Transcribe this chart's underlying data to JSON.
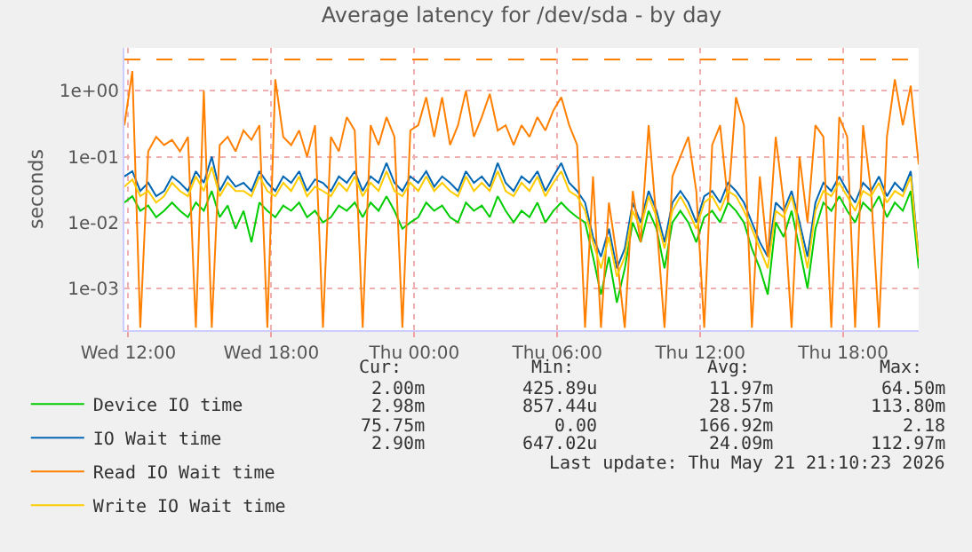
{
  "chart_data": {
    "type": "line",
    "title": "Average latency for /dev/sda - by day",
    "ylabel": "seconds",
    "x": [
      "2026-05-20T11:50",
      "2026-05-20T12:10",
      "2026-05-20T12:30",
      "2026-05-20T12:50",
      "2026-05-20T13:10",
      "2026-05-20T13:30",
      "2026-05-20T13:50",
      "2026-05-20T14:10",
      "2026-05-20T14:30",
      "2026-05-20T14:50",
      "2026-05-20T15:10",
      "2026-05-20T15:30",
      "2026-05-20T15:50",
      "2026-05-20T16:10",
      "2026-05-20T16:30",
      "2026-05-20T16:50",
      "2026-05-20T17:10",
      "2026-05-20T17:30",
      "2026-05-20T17:50",
      "2026-05-20T18:10",
      "2026-05-20T18:30",
      "2026-05-20T18:50",
      "2026-05-20T19:10",
      "2026-05-20T19:30",
      "2026-05-20T19:50",
      "2026-05-20T20:10",
      "2026-05-20T20:30",
      "2026-05-20T20:50",
      "2026-05-20T21:10",
      "2026-05-20T21:30",
      "2026-05-20T21:50",
      "2026-05-20T22:10",
      "2026-05-20T22:30",
      "2026-05-20T22:50",
      "2026-05-20T23:10",
      "2026-05-20T23:30",
      "2026-05-20T23:50",
      "2026-05-21T00:10",
      "2026-05-21T00:30",
      "2026-05-21T00:50",
      "2026-05-21T01:10",
      "2026-05-21T01:30",
      "2026-05-21T01:50",
      "2026-05-21T02:10",
      "2026-05-21T02:30",
      "2026-05-21T02:50",
      "2026-05-21T03:10",
      "2026-05-21T03:30",
      "2026-05-21T03:50",
      "2026-05-21T04:10",
      "2026-05-21T04:30",
      "2026-05-21T04:50",
      "2026-05-21T05:10",
      "2026-05-21T05:30",
      "2026-05-21T05:50",
      "2026-05-21T06:10",
      "2026-05-21T06:30",
      "2026-05-21T06:50",
      "2026-05-21T07:10",
      "2026-05-21T07:30",
      "2026-05-21T07:50",
      "2026-05-21T08:10",
      "2026-05-21T08:30",
      "2026-05-21T08:50",
      "2026-05-21T09:10",
      "2026-05-21T09:30",
      "2026-05-21T09:50",
      "2026-05-21T10:10",
      "2026-05-21T10:30",
      "2026-05-21T10:50",
      "2026-05-21T11:10",
      "2026-05-21T11:30",
      "2026-05-21T11:50",
      "2026-05-21T12:10",
      "2026-05-21T12:30",
      "2026-05-21T12:50",
      "2026-05-21T13:10",
      "2026-05-21T13:30",
      "2026-05-21T13:50",
      "2026-05-21T14:10",
      "2026-05-21T14:30",
      "2026-05-21T14:50",
      "2026-05-21T15:10",
      "2026-05-21T15:30",
      "2026-05-21T15:50",
      "2026-05-21T16:10",
      "2026-05-21T16:30",
      "2026-05-21T16:50",
      "2026-05-21T17:10",
      "2026-05-21T17:30",
      "2026-05-21T17:50",
      "2026-05-21T18:10",
      "2026-05-21T18:30",
      "2026-05-21T18:50",
      "2026-05-21T19:10",
      "2026-05-21T19:30",
      "2026-05-21T19:50",
      "2026-05-21T20:10",
      "2026-05-21T20:30",
      "2026-05-21T20:50",
      "2026-05-21T21:10"
    ],
    "series": [
      {
        "name": "Device IO time",
        "color": "#00cc00",
        "values": [
          0.02,
          0.025,
          0.015,
          0.018,
          0.012,
          0.015,
          0.02,
          0.015,
          0.012,
          0.02,
          0.015,
          0.03,
          0.012,
          0.018,
          0.008,
          0.015,
          0.005,
          0.02,
          0.015,
          0.012,
          0.018,
          0.015,
          0.02,
          0.012,
          0.015,
          0.01,
          0.012,
          0.018,
          0.015,
          0.02,
          0.012,
          0.02,
          0.015,
          0.025,
          0.015,
          0.008,
          0.01,
          0.012,
          0.02,
          0.015,
          0.018,
          0.012,
          0.01,
          0.02,
          0.015,
          0.018,
          0.012,
          0.025,
          0.015,
          0.01,
          0.015,
          0.012,
          0.02,
          0.01,
          0.015,
          0.02,
          0.015,
          0.012,
          0.01,
          0.003,
          0.0008,
          0.003,
          0.0006,
          0.002,
          0.01,
          0.005,
          0.015,
          0.008,
          0.002,
          0.01,
          0.015,
          0.01,
          0.005,
          0.012,
          0.015,
          0.01,
          0.02,
          0.015,
          0.01,
          0.004,
          0.002,
          0.0008,
          0.01,
          0.006,
          0.015,
          0.004,
          0.001,
          0.008,
          0.02,
          0.015,
          0.025,
          0.015,
          0.01,
          0.02,
          0.015,
          0.025,
          0.012,
          0.02,
          0.015,
          0.03,
          0.002
        ]
      },
      {
        "name": "IO Wait time",
        "color": "#0066b3",
        "values": [
          0.05,
          0.06,
          0.03,
          0.04,
          0.025,
          0.03,
          0.05,
          0.04,
          0.03,
          0.06,
          0.04,
          0.1,
          0.03,
          0.05,
          0.035,
          0.04,
          0.03,
          0.06,
          0.04,
          0.03,
          0.05,
          0.04,
          0.06,
          0.03,
          0.045,
          0.04,
          0.03,
          0.05,
          0.04,
          0.06,
          0.03,
          0.05,
          0.04,
          0.08,
          0.04,
          0.03,
          0.05,
          0.04,
          0.06,
          0.035,
          0.05,
          0.04,
          0.03,
          0.06,
          0.04,
          0.05,
          0.035,
          0.08,
          0.04,
          0.03,
          0.05,
          0.04,
          0.06,
          0.03,
          0.05,
          0.08,
          0.04,
          0.03,
          0.02,
          0.006,
          0.003,
          0.008,
          0.002,
          0.004,
          0.02,
          0.01,
          0.03,
          0.015,
          0.005,
          0.02,
          0.03,
          0.02,
          0.01,
          0.025,
          0.03,
          0.02,
          0.04,
          0.03,
          0.02,
          0.01,
          0.005,
          0.003,
          0.02,
          0.015,
          0.03,
          0.01,
          0.003,
          0.02,
          0.04,
          0.03,
          0.05,
          0.03,
          0.02,
          0.04,
          0.03,
          0.05,
          0.025,
          0.04,
          0.03,
          0.06,
          0.003
        ]
      },
      {
        "name": "Read IO Wait time",
        "color": "#ff8000",
        "values": [
          0.3,
          2.0,
          0.00025,
          0.12,
          0.2,
          0.15,
          0.18,
          0.12,
          0.2,
          0.00025,
          1.0,
          0.00025,
          0.15,
          0.2,
          0.12,
          0.25,
          0.18,
          0.3,
          0.00025,
          1.5,
          0.2,
          0.15,
          0.25,
          0.1,
          0.3,
          0.00025,
          0.2,
          0.12,
          0.4,
          0.25,
          0.00025,
          0.3,
          0.15,
          0.4,
          0.2,
          0.00025,
          0.25,
          0.3,
          0.8,
          0.2,
          0.8,
          0.15,
          0.3,
          1.0,
          0.2,
          0.4,
          0.9,
          0.25,
          0.3,
          0.15,
          0.3,
          0.2,
          0.4,
          0.25,
          0.5,
          0.8,
          0.3,
          0.15,
          0.00025,
          0.05,
          0.00025,
          0.02,
          0.003,
          0.00025,
          0.03,
          0.005,
          0.3,
          0.01,
          0.00025,
          0.05,
          0.1,
          0.2,
          0.03,
          0.00025,
          0.15,
          0.3,
          0.02,
          0.8,
          0.3,
          0.00025,
          0.05,
          0.003,
          0.2,
          0.02,
          0.00025,
          0.1,
          0.01,
          0.3,
          0.2,
          0.00025,
          0.4,
          0.2,
          0.00025,
          0.3,
          0.03,
          0.00025,
          0.2,
          1.5,
          0.3,
          1.2,
          0.076
        ]
      },
      {
        "name": "Write IO Wait time",
        "color": "#ffcc00",
        "values": [
          0.035,
          0.045,
          0.025,
          0.03,
          0.02,
          0.025,
          0.04,
          0.03,
          0.025,
          0.05,
          0.03,
          0.07,
          0.025,
          0.04,
          0.03,
          0.03,
          0.025,
          0.05,
          0.03,
          0.025,
          0.04,
          0.03,
          0.05,
          0.025,
          0.035,
          0.03,
          0.025,
          0.04,
          0.03,
          0.05,
          0.025,
          0.04,
          0.03,
          0.06,
          0.03,
          0.025,
          0.04,
          0.03,
          0.05,
          0.03,
          0.04,
          0.03,
          0.025,
          0.05,
          0.03,
          0.04,
          0.03,
          0.06,
          0.03,
          0.025,
          0.04,
          0.03,
          0.05,
          0.025,
          0.04,
          0.06,
          0.03,
          0.025,
          0.015,
          0.005,
          0.002,
          0.006,
          0.0015,
          0.003,
          0.015,
          0.008,
          0.025,
          0.012,
          0.004,
          0.015,
          0.025,
          0.015,
          0.008,
          0.02,
          0.025,
          0.015,
          0.03,
          0.025,
          0.015,
          0.008,
          0.004,
          0.002,
          0.015,
          0.012,
          0.025,
          0.008,
          0.002,
          0.015,
          0.03,
          0.025,
          0.04,
          0.025,
          0.015,
          0.03,
          0.025,
          0.04,
          0.02,
          0.03,
          0.025,
          0.05,
          0.0029
        ]
      }
    ],
    "log": "y",
    "xlim": [
      "2026-05-20T11:50",
      "2026-05-21T21:10"
    ],
    "xticks": [
      {
        "value": "2026-05-20T12:00",
        "label": "Wed 12:00"
      },
      {
        "value": "2026-05-20T18:00",
        "label": "Wed 18:00"
      },
      {
        "value": "2026-05-21T00:00",
        "label": "Thu 00:00"
      },
      {
        "value": "2026-05-21T06:00",
        "label": "Thu 06:00"
      },
      {
        "value": "2026-05-21T12:00",
        "label": "Thu 12:00"
      },
      {
        "value": "2026-05-21T18:00",
        "label": "Thu 18:00"
      }
    ],
    "ylim": [
      0.00023,
      4.5
    ],
    "yticks": [
      {
        "value": 0.001,
        "label": "1e-03"
      },
      {
        "value": 0.01,
        "label": "1e-02"
      },
      {
        "value": 0.1,
        "label": "1e-01"
      },
      {
        "value": 1,
        "label": "1e+00"
      }
    ],
    "ref_lines": [
      {
        "axis": "y",
        "value": 3,
        "color": "#ff8000",
        "line_style": "dashed"
      }
    ],
    "grid": true,
    "legend": "bottom left",
    "marker": "none",
    "line_style": "solid",
    "annotations": [
      "Cur:",
      "Min:",
      "Avg:",
      "Max:",
      "2.00m",
      "425.89u",
      "11.97m",
      "64.50m",
      "2.98m",
      "857.44u",
      "28.57m",
      "113.80m",
      "75.75m",
      "0.00",
      "166.92m",
      "2.18",
      "2.90m",
      "647.02u",
      "24.09m",
      "112.97m",
      "Last update: Thu May 21 21:10:23 2026"
    ]
  }
}
